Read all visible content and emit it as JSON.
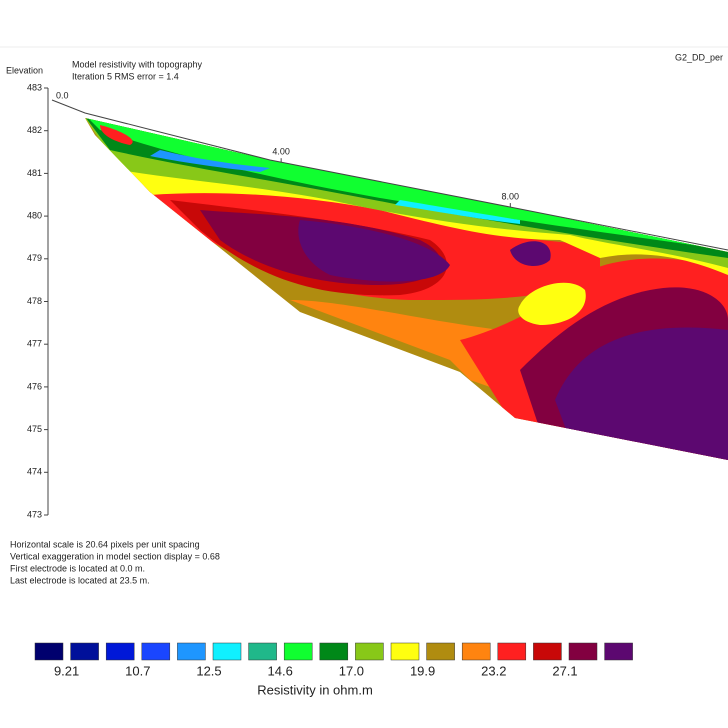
{
  "chart_data": {
    "type": "section",
    "title": "Model resistivity with topography",
    "subtitle": "Iteration 5 RMS error = 1.4",
    "file_label": "G2_DD_per",
    "y_label": "Elevation",
    "ylim": [
      473,
      483
    ],
    "yticks": [
      473,
      474,
      475,
      476,
      477,
      478,
      479,
      480,
      481,
      482,
      483
    ],
    "xlim": [
      0,
      11.8
    ],
    "xticks": [
      {
        "value": 0,
        "label": "0.0"
      },
      {
        "value": 4,
        "label": "4.00"
      },
      {
        "value": 8,
        "label": "8.00"
      }
    ],
    "notes": [
      "Horizontal scale is 20.64 pixels per unit spacing",
      "Vertical exaggeration in model section display = 0.68",
      "First electrode is located at 0.0  m.",
      "Last electrode is located at 23.5 m."
    ],
    "colorbar": {
      "title": "Resistivity in ohm.m",
      "colors": [
        "#00006e",
        "#00109a",
        "#0018d8",
        "#1a46ff",
        "#1e96ff",
        "#10f0ff",
        "#20b88a",
        "#10ff30",
        "#008818",
        "#88c818",
        "#ffff10",
        "#b08c10",
        "#ff8410",
        "#ff2020",
        "#c80808",
        "#820040",
        "#5c0870"
      ],
      "labels": [
        9.21,
        10.7,
        12.5,
        14.6,
        {
          "value": 17,
          "label": "17.0"
        },
        19.9,
        23.2,
        27.1
      ]
    }
  }
}
